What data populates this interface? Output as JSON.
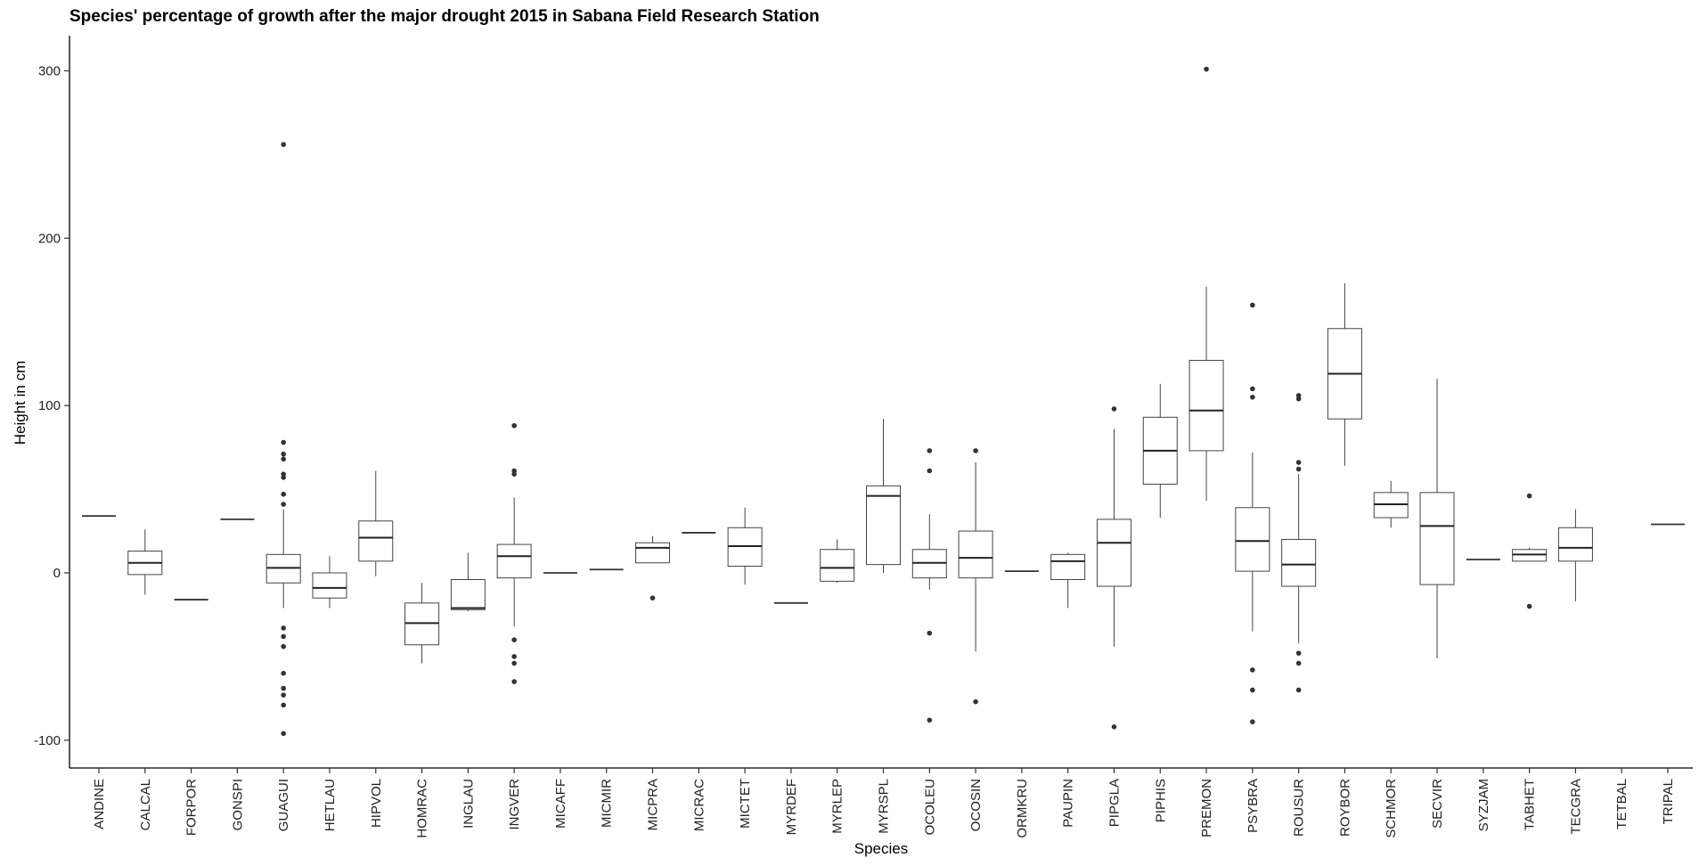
{
  "chart_data": {
    "type": "boxplot",
    "title": "Species' percentage of growth after the major drought 2015 in Sabana Field Research Station",
    "xlabel": "Species",
    "ylabel": "Height in cm",
    "ylim": [
      -117,
      321
    ],
    "yticks": [
      -100,
      0,
      100,
      200,
      300
    ],
    "grid": false,
    "categories": [
      "ANDINE",
      "CALCAL",
      "FORPOR",
      "GONSPI",
      "GUAGUI",
      "HETLAU",
      "HIPVOL",
      "HOMRAC",
      "INGLAU",
      "INGVER",
      "MICAFF",
      "MICMIR",
      "MICPRA",
      "MICRAC",
      "MICTET",
      "MYRDEF",
      "MYRLEP",
      "MYRSPL",
      "OCOLEU",
      "OCOSIN",
      "ORMKRU",
      "PAUPIN",
      "PIPGLA",
      "PIPHIS",
      "PREMON",
      "PSYBRA",
      "ROUSUR",
      "ROYBOR",
      "SCHMOR",
      "SECVIR",
      "SYZJAM",
      "TABHET",
      "TECGRA",
      "TETBAL",
      "TRIPAL"
    ],
    "boxes": [
      {
        "species": "ANDINE",
        "min": 34,
        "q1": 34,
        "median": 34,
        "q3": 34,
        "max": 34,
        "outliers": []
      },
      {
        "species": "CALCAL",
        "min": -13,
        "q1": -1,
        "median": 6,
        "q3": 13,
        "max": 26,
        "outliers": []
      },
      {
        "species": "FORPOR",
        "min": -16,
        "q1": -16,
        "median": -16,
        "q3": -16,
        "max": -16,
        "outliers": []
      },
      {
        "species": "GONSPI",
        "min": 32,
        "q1": 32,
        "median": 32,
        "q3": 32,
        "max": 32,
        "outliers": []
      },
      {
        "species": "GUAGUI",
        "min": -21,
        "q1": -6,
        "median": 3,
        "q3": 11,
        "max": 38,
        "outliers": [
          256,
          78,
          71,
          68,
          59,
          57,
          47,
          41,
          -33,
          -38,
          -44,
          -60,
          -69,
          -73,
          -79,
          -96
        ]
      },
      {
        "species": "HETLAU",
        "min": -21,
        "q1": -15,
        "median": -9,
        "q3": 0,
        "max": 10,
        "outliers": []
      },
      {
        "species": "HIPVOL",
        "min": -2,
        "q1": 7,
        "median": 21,
        "q3": 31,
        "max": 61,
        "outliers": []
      },
      {
        "species": "HOMRAC",
        "min": -54,
        "q1": -43,
        "median": -30,
        "q3": -18,
        "max": -6,
        "outliers": []
      },
      {
        "species": "INGLAU",
        "min": -23,
        "q1": -22,
        "median": -21,
        "q3": -4,
        "max": 12,
        "outliers": []
      },
      {
        "species": "INGVER",
        "min": -32,
        "q1": -3,
        "median": 10,
        "q3": 17,
        "max": 45,
        "outliers": [
          88,
          61,
          59,
          -40,
          -50,
          -54,
          -65
        ]
      },
      {
        "species": "MICAFF",
        "min": 0,
        "q1": 0,
        "median": 0,
        "q3": 0,
        "max": 0,
        "outliers": []
      },
      {
        "species": "MICMIR",
        "min": 2,
        "q1": 2,
        "median": 2,
        "q3": 2,
        "max": 2,
        "outliers": []
      },
      {
        "species": "MICPRA",
        "min": 6,
        "q1": 6,
        "median": 15,
        "q3": 18,
        "max": 22,
        "outliers": [
          -15
        ]
      },
      {
        "species": "MICRAC",
        "min": 24,
        "q1": 24,
        "median": 24,
        "q3": 24,
        "max": 24,
        "outliers": []
      },
      {
        "species": "MICTET",
        "min": -7,
        "q1": 4,
        "median": 16,
        "q3": 27,
        "max": 39,
        "outliers": []
      },
      {
        "species": "MYRDEF",
        "min": -18,
        "q1": -18,
        "median": -18,
        "q3": -18,
        "max": -18,
        "outliers": []
      },
      {
        "species": "MYRLEP",
        "min": -6,
        "q1": -5,
        "median": 3,
        "q3": 14,
        "max": 20,
        "outliers": []
      },
      {
        "species": "MYRSPL",
        "min": 0,
        "q1": 5,
        "median": 46,
        "q3": 52,
        "max": 92,
        "outliers": []
      },
      {
        "species": "OCOLEU",
        "min": -10,
        "q1": -3,
        "median": 6,
        "q3": 14,
        "max": 35,
        "outliers": [
          73,
          61,
          -36,
          -88
        ]
      },
      {
        "species": "OCOSIN",
        "min": -47,
        "q1": -3,
        "median": 9,
        "q3": 25,
        "max": 66,
        "outliers": [
          73,
          -77
        ]
      },
      {
        "species": "ORMKRU",
        "min": 1,
        "q1": 1,
        "median": 1,
        "q3": 1,
        "max": 1,
        "outliers": []
      },
      {
        "species": "PAUPIN",
        "min": -21,
        "q1": -4,
        "median": 7,
        "q3": 11,
        "max": 12,
        "outliers": []
      },
      {
        "species": "PIPGLA",
        "min": -44,
        "q1": -8,
        "median": 18,
        "q3": 32,
        "max": 86,
        "outliers": [
          98,
          -92
        ]
      },
      {
        "species": "PIPHIS",
        "min": 33,
        "q1": 53,
        "median": 73,
        "q3": 93,
        "max": 113,
        "outliers": []
      },
      {
        "species": "PREMON",
        "min": 43,
        "q1": 73,
        "median": 97,
        "q3": 127,
        "max": 171,
        "outliers": [
          301
        ]
      },
      {
        "species": "PSYBRA",
        "min": -35,
        "q1": 1,
        "median": 19,
        "q3": 39,
        "max": 72,
        "outliers": [
          160,
          110,
          105,
          -58,
          -70,
          -89
        ]
      },
      {
        "species": "ROUSUR",
        "min": -42,
        "q1": -8,
        "median": 5,
        "q3": 20,
        "max": 59,
        "outliers": [
          106,
          104,
          66,
          62,
          -48,
          -54,
          -70
        ]
      },
      {
        "species": "ROYBOR",
        "min": 64,
        "q1": 92,
        "median": 119,
        "q3": 146,
        "max": 173,
        "outliers": []
      },
      {
        "species": "SCHMOR",
        "min": 27,
        "q1": 33,
        "median": 41,
        "q3": 48,
        "max": 55,
        "outliers": []
      },
      {
        "species": "SECVIR",
        "min": -51,
        "q1": -7,
        "median": 28,
        "q3": 48,
        "max": 116,
        "outliers": []
      },
      {
        "species": "SYZJAM",
        "min": 8,
        "q1": 8,
        "median": 8,
        "q3": 8,
        "max": 8,
        "outliers": []
      },
      {
        "species": "TABHET",
        "min": 7,
        "q1": 7,
        "median": 11,
        "q3": 14,
        "max": 15,
        "outliers": [
          46,
          -20
        ]
      },
      {
        "species": "TECGRA",
        "min": -17,
        "q1": 7,
        "median": 15,
        "q3": 27,
        "max": 38,
        "outliers": []
      },
      {
        "species": "TETBAL",
        "min": null,
        "q1": null,
        "median": null,
        "q3": null,
        "max": null,
        "outliers": []
      },
      {
        "species": "TRIPAL",
        "min": 29,
        "q1": 29,
        "median": 29,
        "q3": 29,
        "max": 29,
        "outliers": []
      }
    ]
  }
}
